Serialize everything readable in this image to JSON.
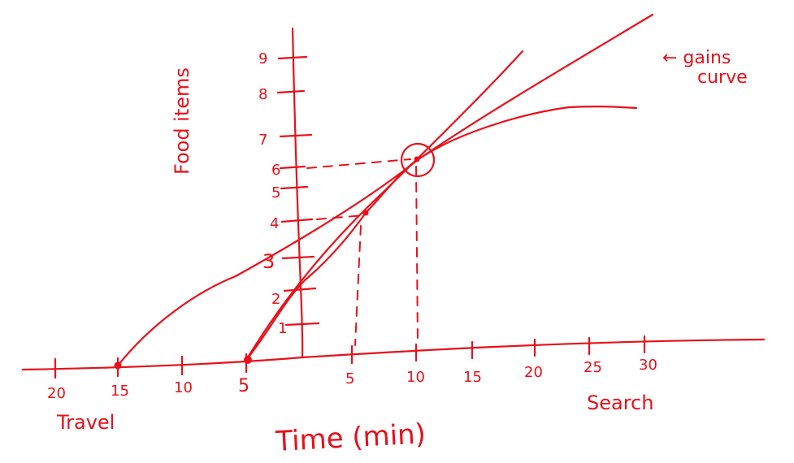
{
  "colors": {
    "ink": "#e8101a",
    "background": "#ffffff"
  },
  "labels": {
    "y_axis": "Food items",
    "x_axis": "Time (min)",
    "travel": "Travel",
    "search": "Search",
    "gains_line1": "← gains",
    "gains_line2": "curve"
  },
  "y_ticks": [
    "1",
    "2",
    "3",
    "4",
    "5",
    "6",
    "7",
    "8",
    "9"
  ],
  "travel_ticks": [
    "20",
    "15",
    "10",
    "5"
  ],
  "search_ticks": [
    "5",
    "10",
    "15",
    "20",
    "25",
    "30"
  ]
}
